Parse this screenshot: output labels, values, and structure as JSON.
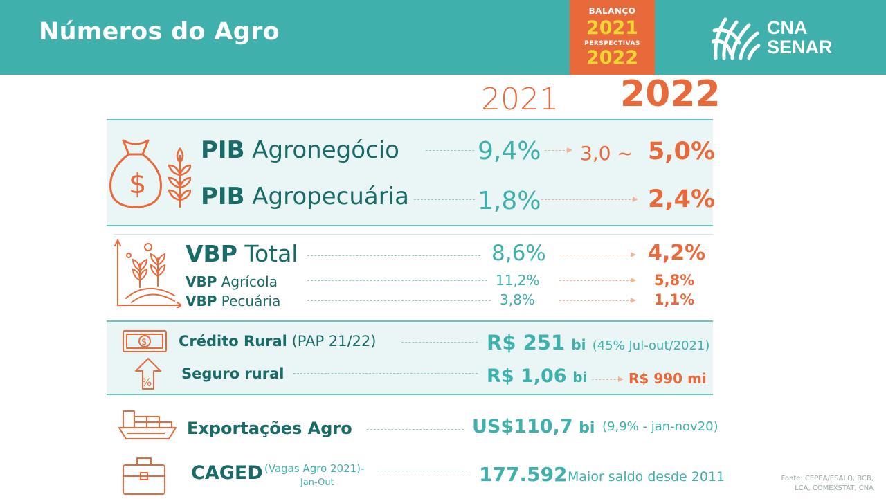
{
  "header": {
    "title": "Números do Agro",
    "badge": {
      "line1": "BALANÇO",
      "line2": "2021",
      "line3": "PERSPECTIVAS",
      "line4": "2022"
    },
    "logo": {
      "line1": "CNA",
      "line2": "SENAR"
    }
  },
  "columns": {
    "y2021": "2021",
    "y2022": "2022"
  },
  "pib": {
    "agronegocio": {
      "bold": "PIB",
      "rest": "Agronegócio",
      "v2021": "9,4%",
      "v2022_low": "3,0 ~",
      "v2022": "5,0%"
    },
    "agropecuaria": {
      "bold": "PIB",
      "rest": "Agropecuária",
      "v2021": "1,8%",
      "v2022": "2,4%"
    }
  },
  "vbp": {
    "total": {
      "bold": "VBP",
      "rest": "Total",
      "v2021": "8,6%",
      "v2022": "4,2%"
    },
    "agricola": {
      "bold": "VBP",
      "rest": "Agrícola",
      "v2021": "11,2%",
      "v2022": "5,8%"
    },
    "pecuaria": {
      "bold": "VBP",
      "rest": "Pecuária",
      "v2021": "3,8%",
      "v2022": "1,1%"
    }
  },
  "credito": {
    "label": "Crédito Rural",
    "note": "(PAP 21/22)",
    "value": "R$ 251",
    "unit": "bi",
    "extra": "(45% Jul-out/2021)"
  },
  "seguro": {
    "label": "Seguro rural",
    "value": "R$ 1,06",
    "unit": "bi",
    "v2022": "R$ 990 mi"
  },
  "exportacoes": {
    "label": "Exportações Agro",
    "value": "US$110,7",
    "unit": "bi",
    "extra": "(9,9% - jan-nov20)"
  },
  "caged": {
    "label": "CAGED",
    "note1": "(Vagas Agro 2021)-",
    "note2": "Jan-Out",
    "value": "177.592",
    "extra": "Maior saldo desde 2011"
  },
  "source": {
    "line1": "Fonte: CEPEA/ESALQ, BCB,",
    "line2": "LCA, COMEXSTAT, CNA"
  },
  "colors": {
    "teal_header": "#3fb0ac",
    "dark_teal": "#1a6b68",
    "orange": "#e8693a",
    "yellow": "#f2d534",
    "panel": "#eaf6f5"
  },
  "icons": [
    "money-bag-icon",
    "wheat-icon",
    "crop-growth-icon",
    "banknote-icon",
    "percent-arrow-icon",
    "cargo-ship-icon",
    "briefcase-icon",
    "cna-senar-logo"
  ]
}
